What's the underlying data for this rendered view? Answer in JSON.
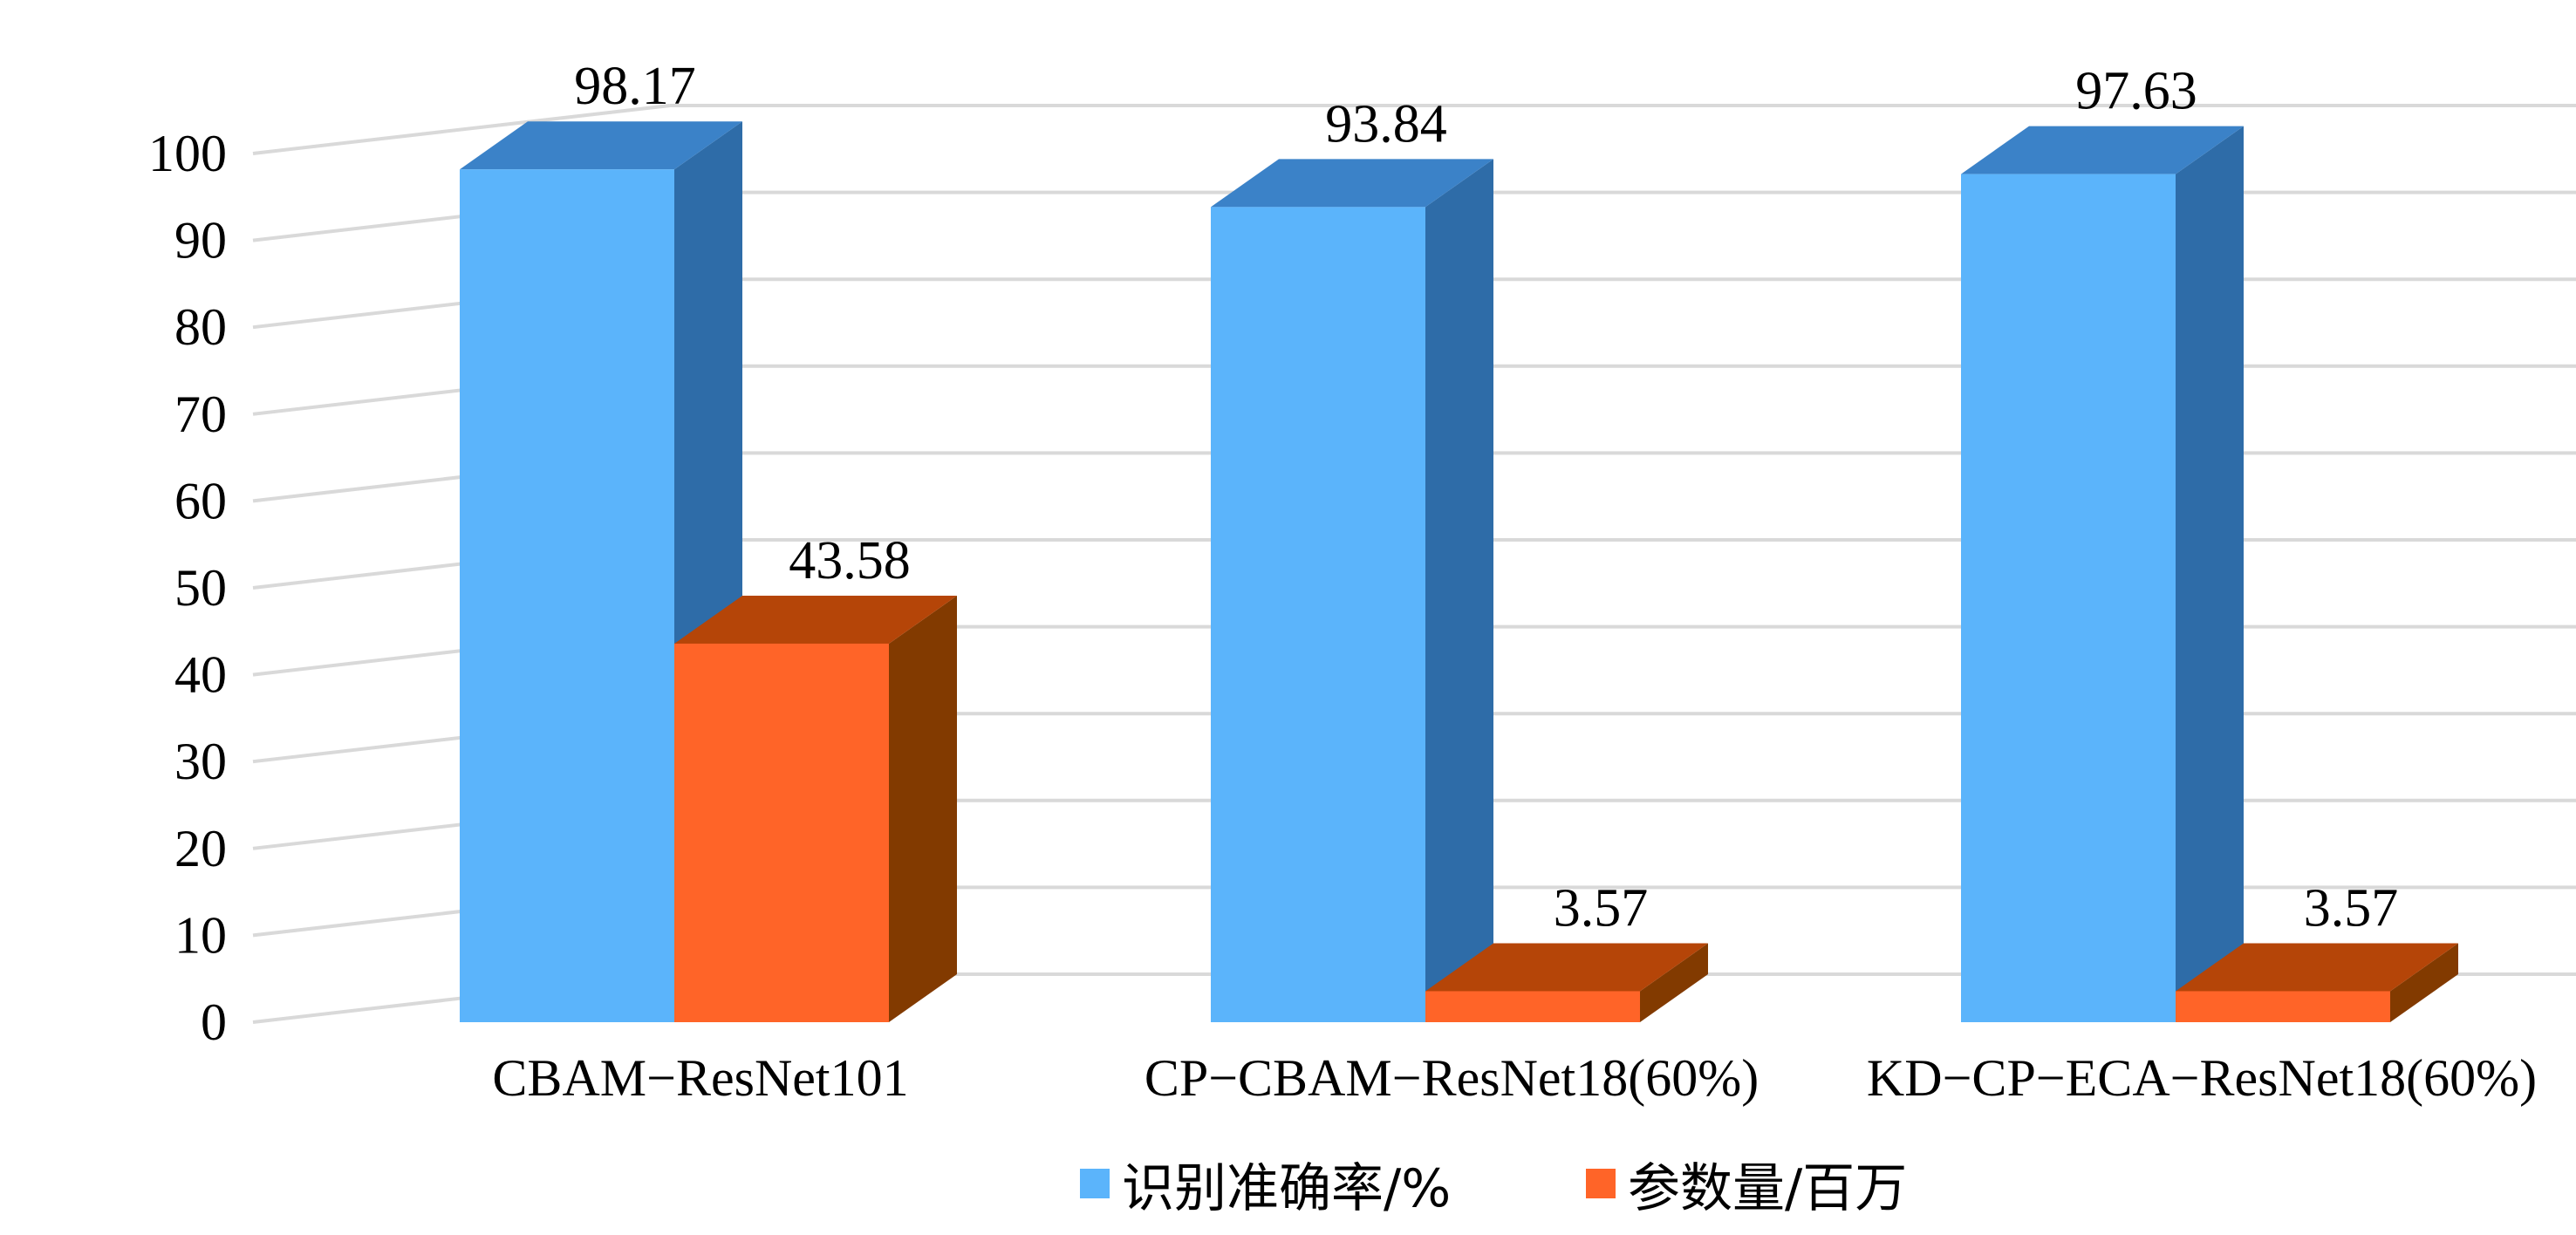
{
  "chart_data": {
    "type": "bar",
    "categories": [
      "CBAM−ResNet101",
      "CP−CBAM−ResNet18(60%)",
      "KD−CP−ECA−ResNet18(60%)"
    ],
    "series": [
      {
        "name": "识别准确率/%",
        "values": [
          98.17,
          93.84,
          97.63
        ],
        "value_labels": [
          "98.17",
          "93.84",
          "97.63"
        ],
        "color": "#5bb4fb",
        "side_color": "#2e6ca8",
        "top_color": "#3b82c8"
      },
      {
        "name": "参数量/百万",
        "values": [
          43.58,
          3.57,
          3.57
        ],
        "value_labels": [
          "43.58",
          "3.57",
          "3.57"
        ],
        "color": "#ff6428",
        "side_color": "#823a00",
        "top_color": "#b54508"
      }
    ],
    "yticks": [
      0,
      10,
      20,
      30,
      40,
      50,
      60,
      70,
      80,
      90,
      100
    ],
    "ylim": [
      0,
      100
    ],
    "grid": true,
    "legend_position": "bottom",
    "style": "3d-column"
  }
}
